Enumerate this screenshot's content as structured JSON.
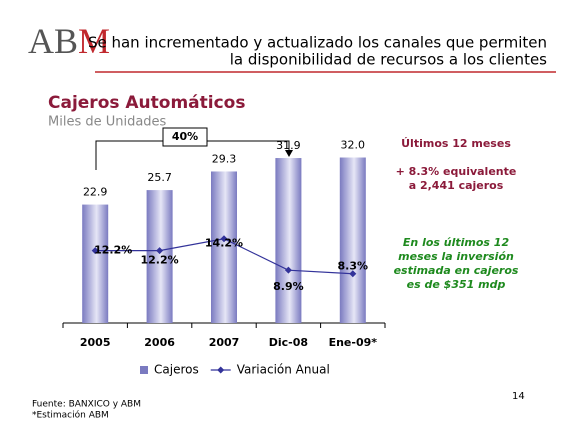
{
  "header": {
    "logo": "ABM",
    "title_lines": [
      "Se han incrementado y actualizado los canales que permiten",
      "la disponibilidad de recursos a los clientes"
    ]
  },
  "chart_data": {
    "type": "bar",
    "title": "Cajeros Automáticos",
    "subtitle": "Miles de Unidades",
    "categories": [
      "2005",
      "2006",
      "2007",
      "Dic-08",
      "Ene-09*"
    ],
    "series": [
      {
        "name": "Cajeros",
        "type": "bar",
        "color": "#7a7ac0",
        "values": [
          22.9,
          25.7,
          29.3,
          31.9,
          32.0
        ],
        "value_labels": [
          "22.9",
          "25.7",
          "29.3",
          "31.9",
          "32.0"
        ]
      },
      {
        "name": "Variación Anual",
        "type": "line",
        "axis": "y2",
        "color": "#33339a",
        "values": [
          12.2,
          12.2,
          14.2,
          8.9,
          8.3
        ],
        "value_labels": [
          "12.2%",
          "12.2%",
          "14.2%",
          "8.9%",
          "8.3%"
        ]
      }
    ],
    "ylim": [
      0,
      35
    ],
    "y2lim": [
      0,
      30.5
    ],
    "legend": "bottom",
    "growth_label": "40%"
  },
  "notes": {
    "heading": "Últimos 12 meses",
    "growth_lines": [
      "+ 8.3% equivalente",
      "a 2,441 cajeros"
    ],
    "investment_lines": [
      "En los últimos 12",
      "meses la  inversión",
      "estimada en cajeros",
      "es de $351 mdp"
    ]
  },
  "footer": {
    "sources": [
      "Fuente: BANXICO y ABM",
      "*Estimación ABM"
    ],
    "page": "14"
  }
}
